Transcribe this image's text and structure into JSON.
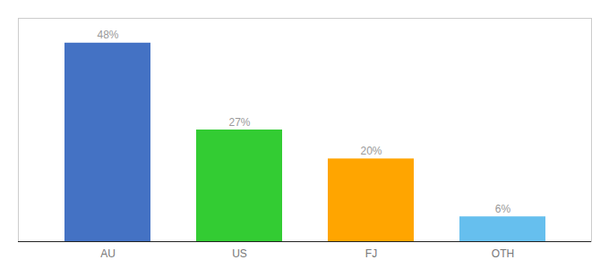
{
  "chart_data": {
    "type": "bar",
    "categories": [
      "AU",
      "US",
      "FJ",
      "OTH"
    ],
    "values": [
      48,
      27,
      20,
      6
    ],
    "value_labels": [
      "48%",
      "27%",
      "20%",
      "6%"
    ],
    "colors": [
      "#4472C4",
      "#33CC33",
      "#FFA500",
      "#66BFEE"
    ],
    "ylim": [
      0,
      54
    ],
    "data_labels": true,
    "tick_labels": "x",
    "grid": false
  }
}
